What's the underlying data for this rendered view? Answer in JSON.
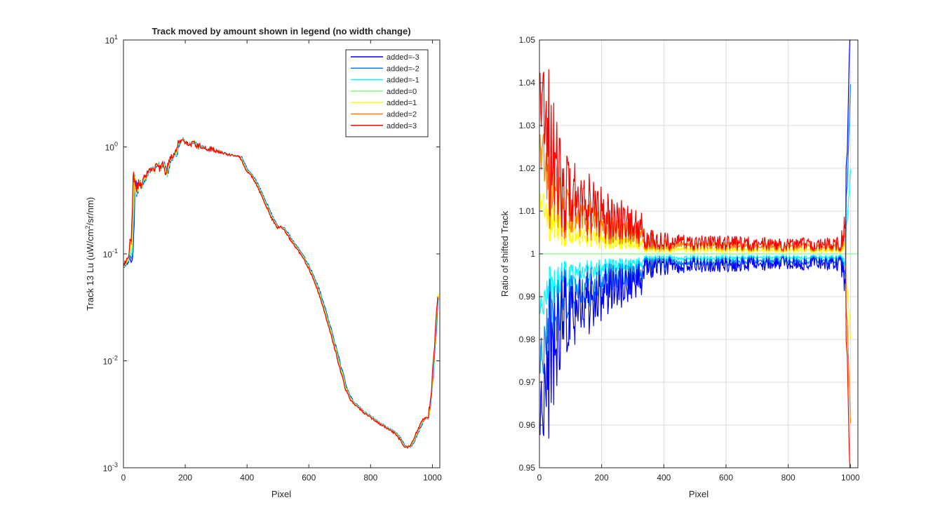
{
  "series_colors": [
    "#0000ff",
    "#0080ff",
    "#00ffff",
    "#80ff80",
    "#ffff00",
    "#ff8000",
    "#ff0000"
  ],
  "chart_data": [
    {
      "type": "line",
      "title": "Track moved by amount shown in legend (no width change)",
      "xlabel": "Pixel",
      "ylabel_main": "Track 13 Lu (uW/cm",
      "ylabel_sup": "2",
      "ylabel_tail": "/sr/nm)",
      "yscale": "log",
      "xlim": [
        0,
        1024
      ],
      "ylim": [
        0.001,
        10
      ],
      "grid": false,
      "legend_position": "top-right",
      "xticks": [
        0,
        200,
        400,
        600,
        800,
        1000
      ],
      "xtick_labels": [
        "0",
        "200",
        "400",
        "600",
        "800",
        "1000"
      ],
      "yticks": [
        0.001,
        0.01,
        0.1,
        1,
        10
      ],
      "ytick_base": "10",
      "ytick_exponents": [
        "-3",
        "-2",
        "-1",
        "0",
        "1"
      ],
      "series": [
        {
          "name": "added=-3",
          "shift": -3
        },
        {
          "name": "added=-2",
          "shift": -2
        },
        {
          "name": "added=-1",
          "shift": -1
        },
        {
          "name": "added=0",
          "shift": 0
        },
        {
          "name": "added=1",
          "shift": 1
        },
        {
          "name": "added=2",
          "shift": 2
        },
        {
          "name": "added=3",
          "shift": 3
        }
      ],
      "base_curve": {
        "x": [
          1,
          10,
          20,
          28,
          32,
          35,
          40,
          50,
          60,
          70,
          80,
          90,
          100,
          110,
          120,
          130,
          140,
          150,
          160,
          170,
          180,
          190,
          200,
          210,
          220,
          230,
          240,
          250,
          260,
          270,
          280,
          290,
          300,
          320,
          340,
          360,
          380,
          400,
          420,
          440,
          460,
          480,
          500,
          510,
          520,
          540,
          560,
          580,
          600,
          620,
          640,
          660,
          680,
          700,
          720,
          740,
          760,
          780,
          800,
          820,
          840,
          860,
          880,
          900,
          910,
          920,
          930,
          940,
          950,
          960,
          970,
          980,
          990,
          1000,
          1010,
          1020
        ],
        "y": [
          0.075,
          0.082,
          0.1,
          0.12,
          0.25,
          0.55,
          0.38,
          0.45,
          0.42,
          0.52,
          0.58,
          0.63,
          0.6,
          0.68,
          0.62,
          0.72,
          0.55,
          0.75,
          0.82,
          0.85,
          1.1,
          1.15,
          1.08,
          1.1,
          1.05,
          1.12,
          1.0,
          1.05,
          0.98,
          0.97,
          0.95,
          0.96,
          0.92,
          0.88,
          0.85,
          0.83,
          0.8,
          0.6,
          0.52,
          0.4,
          0.3,
          0.22,
          0.175,
          0.18,
          0.17,
          0.14,
          0.115,
          0.095,
          0.075,
          0.056,
          0.038,
          0.024,
          0.015,
          0.009,
          0.0055,
          0.0042,
          0.0037,
          0.0033,
          0.003,
          0.0027,
          0.0025,
          0.0023,
          0.0021,
          0.0018,
          0.0016,
          0.00155,
          0.0016,
          0.0018,
          0.0021,
          0.0024,
          0.0028,
          0.0029,
          0.003,
          0.006,
          0.016,
          0.045
        ]
      },
      "noise_amplitude": 0.06
    },
    {
      "type": "line",
      "title": "",
      "xlabel": "Pixel",
      "ylabel": "Ratio of shifted Track",
      "xlim": [
        0,
        1024
      ],
      "ylim": [
        0.95,
        1.05
      ],
      "grid": true,
      "xticks": [
        0,
        200,
        400,
        600,
        800,
        1000
      ],
      "xtick_labels": [
        "0",
        "200",
        "400",
        "600",
        "800",
        "1000"
      ],
      "yticks": [
        0.95,
        0.96,
        0.97,
        0.98,
        0.99,
        1.0,
        1.01,
        1.02,
        1.03,
        1.04,
        1.05
      ],
      "ytick_labels": [
        "0.95",
        "0.96",
        "0.97",
        "0.98",
        "0.99",
        "1",
        "1.01",
        "1.02",
        "1.03",
        "1.04",
        "1.05"
      ],
      "ratio_envelope": {
        "x": [
          0,
          20,
          40,
          60,
          80,
          100,
          150,
          200,
          250,
          300,
          330,
          340,
          400,
          500,
          600,
          700,
          800,
          900,
          970,
          990,
          1000
        ],
        "amplitude": [
          0.05,
          0.05,
          0.04,
          0.03,
          0.025,
          0.022,
          0.02,
          0.016,
          0.013,
          0.012,
          0.01,
          0.006,
          0.005,
          0.0045,
          0.0042,
          0.004,
          0.0038,
          0.0038,
          0.004,
          0.02,
          0.05
        ]
      },
      "series_scale": [
        -1.0,
        -0.66,
        -0.33,
        0.0,
        0.33,
        0.66,
        1.0
      ]
    }
  ]
}
